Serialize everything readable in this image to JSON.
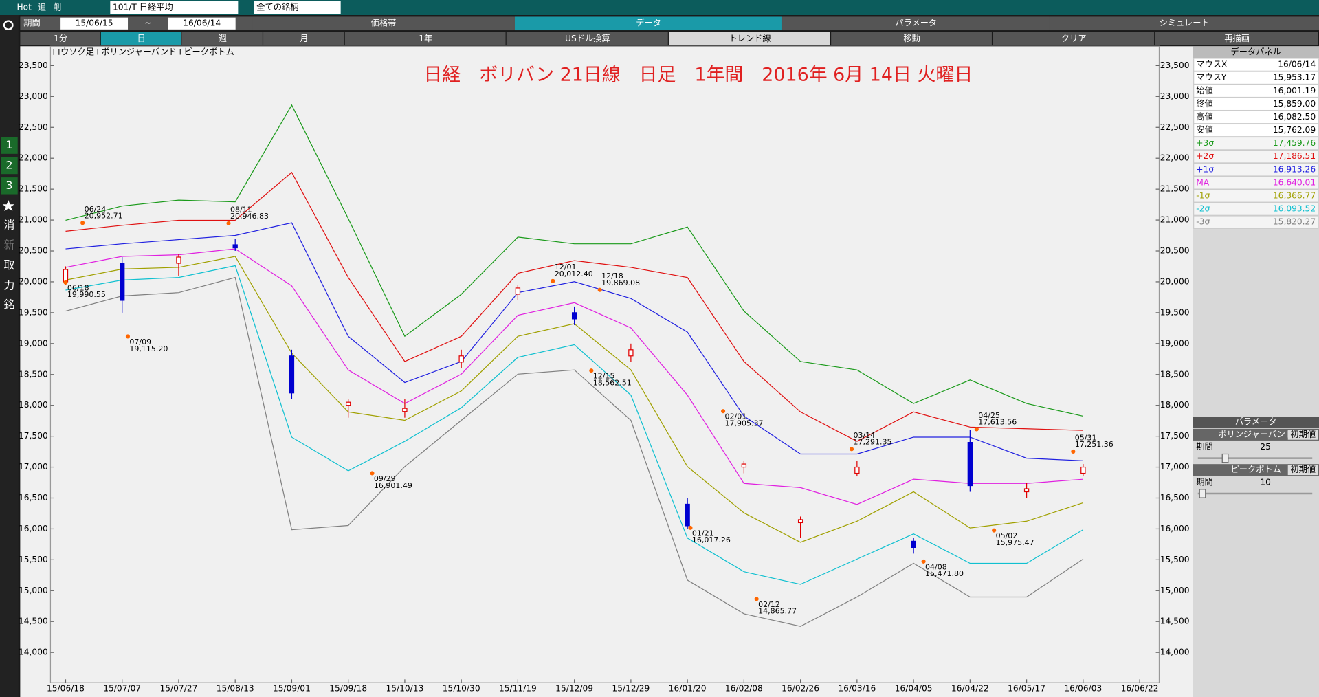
{
  "ui": {
    "top": {
      "hot": "Hot",
      "add": "追",
      "del": "削",
      "symbol": "101/T 日経平均",
      "market": "全ての銘柄"
    },
    "period": {
      "label": "期間",
      "from": "15/06/15",
      "sep": "~",
      "to": "16/06/14"
    },
    "tabs": [
      "価格帯",
      "データ",
      "パラメータ",
      "シミュレート"
    ],
    "buttons": [
      "1分",
      "日",
      "週",
      "月",
      "1年",
      "USドル換算",
      "トレンド線",
      "移動",
      "クリア",
      "再描画"
    ],
    "tools": [
      "1",
      "2",
      "3",
      "消",
      "新",
      "取",
      "力",
      "銘"
    ],
    "panel": {
      "title": "データパネル",
      "rows": [
        {
          "label": "マウスX",
          "value": "16/06/14"
        },
        {
          "label": "マウスY",
          "value": "15,953.17"
        },
        {
          "label": "始値",
          "value": "16,001.19"
        },
        {
          "label": "終値",
          "value": "15,859.00"
        },
        {
          "label": "高値",
          "value": "16,082.50"
        },
        {
          "label": "安値",
          "value": "15,762.09"
        }
      ],
      "band_values": [
        "17,459.76",
        "17,186.51",
        "16,913.26",
        "16,640.01",
        "16,366.77",
        "16,093.52",
        "15,820.27"
      ]
    },
    "params": {
      "title": "パラメータ",
      "groups": [
        {
          "name": "ボリンジャーバンド",
          "reset": "初期値",
          "label": "期間",
          "value": "25"
        },
        {
          "name": "ピークボトム",
          "reset": "初期値",
          "label": "期間",
          "value": "10"
        }
      ]
    }
  },
  "chart_data": {
    "type": "candlestick",
    "title": "日経　ボリバン 21日線　日足　1年間　2016年 6月 14日 火曜日",
    "subtitle": "ロウソク足+ボリンジャーバンド+ピークボトム",
    "categories": [
      "15/06/18",
      "15/07/07",
      "15/07/27",
      "15/08/13",
      "15/09/01",
      "15/09/18",
      "15/10/13",
      "15/10/30",
      "15/11/19",
      "15/12/09",
      "15/12/29",
      "16/01/20",
      "16/02/08",
      "16/02/26",
      "16/03/16",
      "16/04/05",
      "16/04/22",
      "16/05/17",
      "16/06/03",
      "16/06/22"
    ],
    "ylim": [
      13510,
      23813
    ],
    "yticks": [
      {
        "value": 14000,
        "label": "14,000"
      },
      {
        "value": 14500,
        "label": "14,500"
      },
      {
        "value": 15000,
        "label": "15,000"
      },
      {
        "value": 15500,
        "label": "15,500"
      },
      {
        "value": 16000,
        "label": "16,000"
      },
      {
        "value": 16500,
        "label": "16,500"
      },
      {
        "value": 17000,
        "label": "17,000"
      },
      {
        "value": 17500,
        "label": "17,500"
      },
      {
        "value": 18000,
        "label": "18,000"
      },
      {
        "value": 18500,
        "label": "18,500"
      },
      {
        "value": 19000,
        "label": "19,000"
      },
      {
        "value": 19500,
        "label": "19,500"
      },
      {
        "value": 20000,
        "label": "20,000"
      },
      {
        "value": 20500,
        "label": "20,500"
      },
      {
        "value": 21000,
        "label": "21,000"
      },
      {
        "value": 21500,
        "label": "21,500"
      },
      {
        "value": 22000,
        "label": "22,000"
      },
      {
        "value": 22500,
        "label": "22,500"
      },
      {
        "value": 23000,
        "label": "23,000"
      },
      {
        "value": 23500,
        "label": "23,500"
      }
    ],
    "open": [
      20000,
      20300,
      20300,
      20600,
      18800,
      18000,
      17900,
      18700,
      19800,
      19500,
      18800,
      16400,
      17000,
      16100,
      16900,
      15800,
      17400,
      16600,
      16900,
      null
    ],
    "high": [
      20250,
      20400,
      20450,
      20700,
      18900,
      18100,
      18100,
      18900,
      19950,
      19600,
      19000,
      16500,
      17100,
      16200,
      17100,
      15850,
      17600,
      16750,
      17050,
      null
    ],
    "low": [
      19950,
      19500,
      20100,
      20500,
      18100,
      17800,
      17800,
      18600,
      19700,
      19300,
      18700,
      16000,
      16900,
      15850,
      16850,
      15600,
      16600,
      16500,
      16850,
      null
    ],
    "close": [
      20200,
      19700,
      20400,
      20550,
      18200,
      18050,
      17950,
      18800,
      19900,
      19400,
      18900,
      16050,
      17050,
      16150,
      17000,
      15700,
      16700,
      16650,
      17000,
      null
    ],
    "up_color": "#e00000",
    "down_color": "#0000d0",
    "series": [
      {
        "name": "+3σ",
        "color": "#1a9a1a",
        "values": [
          20996,
          21227,
          21322,
          21295,
          22860,
          21023,
          19118,
          19798,
          20724,
          20615,
          20615,
          20887,
          19526,
          18709,
          18573,
          18029,
          18410,
          18029,
          17825,
          null
        ]
      },
      {
        "name": "+2σ",
        "color": "#e01010",
        "values": [
          20819,
          20914,
          20996,
          20996,
          21771,
          20070,
          18709,
          19118,
          20138,
          20343,
          20234,
          20070,
          18709,
          17893,
          17417,
          17893,
          17648,
          17621,
          17594,
          null
        ]
      },
      {
        "name": "+1σ",
        "color": "#2020e0",
        "values": [
          20533,
          20615,
          20683,
          20751,
          20955,
          19118,
          18369,
          18709,
          19825,
          20002,
          19730,
          19186,
          17825,
          17212,
          17212,
          17485,
          17485,
          17144,
          17103,
          null
        ]
      },
      {
        "name": "MA",
        "color": "#e020e0",
        "values": [
          20234,
          20411,
          20438,
          20533,
          19934,
          18573,
          18029,
          18505,
          19458,
          19662,
          19254,
          18165,
          16736,
          16668,
          16396,
          16804,
          16736,
          16736,
          16804,
          null
        ]
      },
      {
        "name": "-1σ",
        "color": "#a0a000",
        "values": [
          20029,
          20207,
          20234,
          20411,
          18845,
          17893,
          17757,
          18233,
          19118,
          19322,
          18573,
          17008,
          16260,
          15783,
          16124,
          16600,
          16015,
          16124,
          16423,
          null
        ]
      },
      {
        "name": "-2σ",
        "color": "#10c0d0",
        "values": [
          19866,
          20029,
          20070,
          20261,
          17485,
          16940,
          17417,
          17961,
          18777,
          18982,
          18165,
          15851,
          15307,
          15103,
          15511,
          15919,
          15443,
          15443,
          15987,
          null
        ]
      },
      {
        "name": "-3σ",
        "color": "#808080",
        "values": [
          19526,
          19771,
          19825,
          20070,
          15987,
          16055,
          17008,
          17757,
          18505,
          18573,
          17757,
          15171,
          14626,
          14422,
          14898,
          15443,
          14898,
          14898,
          15511,
          null
        ]
      }
    ],
    "peaks": {
      "color": "#ff6600",
      "dates": [
        "06/18",
        "06/24",
        "07/09",
        "08/11",
        "09/29",
        "12/01",
        "12/15",
        "12/18",
        "01/21",
        "02/01",
        "02/12",
        "03/14",
        "04/08",
        "04/25",
        "05/02",
        "05/31"
      ],
      "values": [
        19990.55,
        20952.71,
        19115.2,
        20946.83,
        16901.49,
        20012.4,
        18562.51,
        19869.08,
        16017.26,
        17905.37,
        14865.77,
        17291.35,
        15471.8,
        17613.56,
        15975.47,
        17251.36
      ],
      "value_labels": [
        "19,990.55",
        "20,952.71",
        "19,115.20",
        "20,946.83",
        "16,901.49",
        "20,012.40",
        "18,562.51",
        "19,869.08",
        "16,017.26",
        "17,905.37",
        "14,865.77",
        "17,291.35",
        "15,471.80",
        "17,613.56",
        "15,975.47",
        "17,251.36"
      ]
    }
  }
}
